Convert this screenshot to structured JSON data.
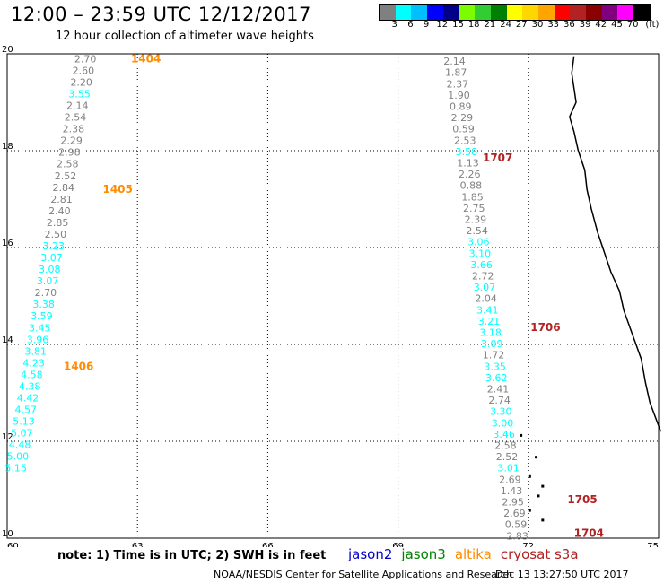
{
  "title": "12:00 – 23:59 UTC 12/12/2017",
  "subtitle": "12 hour collection of altimeter wave heights",
  "colorbar": {
    "colors": [
      "#808080",
      "#00ffff",
      "#00bfff",
      "#0000ff",
      "#00008b",
      "#7cfc00",
      "#32cd32",
      "#008000",
      "#ffff00",
      "#ffd700",
      "#ffa500",
      "#ff0000",
      "#b22222",
      "#8b0000",
      "#800080",
      "#ff00ff",
      "#000000"
    ],
    "labels": [
      "3",
      "6",
      "9",
      "12",
      "15",
      "18",
      "21",
      "24",
      "27",
      "30",
      "33",
      "36",
      "39",
      "42",
      "45",
      "70",
      "(ft)"
    ],
    "label_offsets": [
      1,
      2,
      3,
      4,
      5,
      6,
      7,
      8,
      9,
      10,
      11,
      12,
      13,
      14,
      15,
      16,
      17
    ]
  },
  "map": {
    "lon_range": [
      60,
      75
    ],
    "lat_range": [
      10,
      20
    ],
    "lon_ticks": [
      "60",
      "63",
      "66",
      "69",
      "72",
      "75"
    ],
    "lat_ticks": [
      "20",
      "18",
      "16",
      "14",
      "12",
      "10"
    ],
    "passes": [
      {
        "satellite": "altika",
        "segments": [
          {
            "label": "1404",
            "label_lon": 62.85,
            "label_lat": 19.9,
            "start_lon": 61.8,
            "start_lat": 19.9,
            "end_lon": 60.2,
            "end_lat": 11.45,
            "values": [
              "2.70",
              "2.60",
              "2.20",
              "3.55",
              "2.14",
              "2.54",
              "2.38",
              "2.29",
              "2.98",
              "2.58",
              "2.52",
              "2.84",
              "2.81",
              "2.40",
              "2.85",
              "2.50",
              "3.23",
              "3.07",
              "3.08",
              "3.07",
              "2.70",
              "3.38",
              "3.59",
              "3.45",
              "3.96",
              "3.81",
              "4.23",
              "4.58",
              "4.38",
              "4.42",
              "4.57",
              "5.13",
              "5.07",
              "4.48",
              "5.00",
              "5.15"
            ]
          }
        ],
        "extra_labels": [
          {
            "label": "1405",
            "lon": 62.2,
            "lat": 17.2
          },
          {
            "label": "1406",
            "lon": 61.3,
            "lat": 13.55
          }
        ]
      },
      {
        "satellite": "cryosat",
        "segments": [
          {
            "label": "1707",
            "label_lon": 70.95,
            "label_lat": 17.85,
            "start_lon": 70.3,
            "start_lat": 19.85,
            "end_lon": 71.75,
            "end_lat": 10.05,
            "values": [
              "2.14",
              "1.87",
              "2.37",
              "1.90",
              "0.89",
              "2.29",
              "0.59",
              "2.53",
              "3.58",
              "1.13",
              "2.26",
              "0.88",
              "1.85",
              "2.75",
              "2.39",
              "2.54",
              "3.06",
              "3.10",
              "3.66",
              "2.72",
              "3.07",
              "2.04",
              "3.41",
              "3.21",
              "3.18",
              "3.09",
              "1.72",
              "3.35",
              "3.62",
              "2.41",
              "2.74",
              "3.30",
              "3.00",
              "3.46",
              "2.58",
              "2.52",
              "3.01",
              "2.69",
              "1.43",
              "2.95",
              "2.69",
              "0.59",
              "2.83"
            ]
          }
        ],
        "extra_labels": [
          {
            "label": "1706",
            "lon": 72.05,
            "lat": 14.35
          },
          {
            "label": "1705",
            "lon": 72.9,
            "lat": 10.8
          },
          {
            "label": "1704",
            "lon": 73.05,
            "lat": 10.1
          }
        ]
      }
    ]
  },
  "note": "note: 1) Time is in UTC; 2) SWH is in feet",
  "legend": [
    {
      "name": "jason2",
      "color": "#0000cc"
    },
    {
      "name": "jason3",
      "color": "#008000"
    },
    {
      "name": "altika",
      "color": "#ff8c00"
    },
    {
      "name": "cryosat s3a",
      "color": "#b22222"
    }
  ],
  "credit": "NOAA/NESDIS Center for Satellite Applications and Research",
  "timestamp": "Dec 13 13:27:50 UTC 2017"
}
